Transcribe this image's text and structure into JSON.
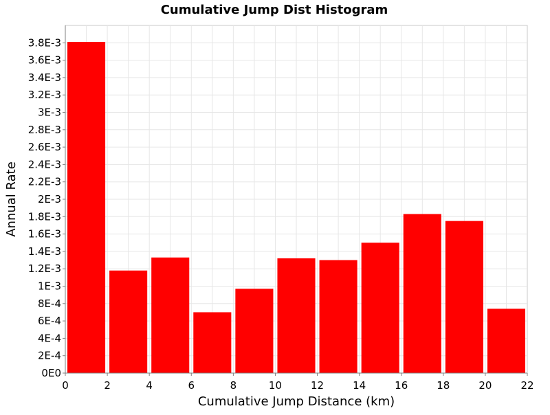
{
  "chart_data": {
    "type": "bar",
    "title": "Cumulative Jump Dist Histogram",
    "xlabel": "Cumulative Jump Distance (km)",
    "ylabel": "Annual Rate",
    "xlim": [
      0,
      22
    ],
    "ylim": [
      0,
      0.004
    ],
    "grid": true,
    "legend": "none",
    "bar_color": "#ff0000",
    "x_ticks": [
      {
        "value": 0,
        "label": "0"
      },
      {
        "value": 2,
        "label": "2"
      },
      {
        "value": 4,
        "label": "4"
      },
      {
        "value": 6,
        "label": "6"
      },
      {
        "value": 8,
        "label": "8"
      },
      {
        "value": 10,
        "label": "10"
      },
      {
        "value": 12,
        "label": "12"
      },
      {
        "value": 14,
        "label": "14"
      },
      {
        "value": 16,
        "label": "16"
      },
      {
        "value": 18,
        "label": "18"
      },
      {
        "value": 20,
        "label": "20"
      },
      {
        "value": 22,
        "label": "22"
      }
    ],
    "y_ticks": [
      {
        "value": 0,
        "label": "0E0"
      },
      {
        "value": 0.0002,
        "label": "2E-4"
      },
      {
        "value": 0.0004,
        "label": "4E-4"
      },
      {
        "value": 0.0006,
        "label": "6E-4"
      },
      {
        "value": 0.0008,
        "label": "8E-4"
      },
      {
        "value": 0.001,
        "label": "1E-3"
      },
      {
        "value": 0.0012,
        "label": "1.2E-3"
      },
      {
        "value": 0.0014,
        "label": "1.4E-3"
      },
      {
        "value": 0.0016,
        "label": "1.6E-3"
      },
      {
        "value": 0.0018,
        "label": "1.8E-3"
      },
      {
        "value": 0.002,
        "label": "2E-3"
      },
      {
        "value": 0.0022,
        "label": "2.2E-3"
      },
      {
        "value": 0.0024,
        "label": "2.4E-3"
      },
      {
        "value": 0.0026,
        "label": "2.6E-3"
      },
      {
        "value": 0.0028,
        "label": "2.8E-3"
      },
      {
        "value": 0.003,
        "label": "3E-3"
      },
      {
        "value": 0.0032,
        "label": "3.2E-3"
      },
      {
        "value": 0.0034,
        "label": "3.4E-3"
      },
      {
        "value": 0.0036,
        "label": "3.6E-3"
      },
      {
        "value": 0.0038,
        "label": "3.8E-3"
      }
    ],
    "bins": [
      {
        "x0": 0,
        "x1": 2,
        "value": 0.00381
      },
      {
        "x0": 2,
        "x1": 4,
        "value": 0.00118
      },
      {
        "x0": 4,
        "x1": 6,
        "value": 0.00133
      },
      {
        "x0": 6,
        "x1": 8,
        "value": 0.0007
      },
      {
        "x0": 8,
        "x1": 10,
        "value": 0.00097
      },
      {
        "x0": 10,
        "x1": 12,
        "value": 0.00132
      },
      {
        "x0": 12,
        "x1": 14,
        "value": 0.0013
      },
      {
        "x0": 14,
        "x1": 16,
        "value": 0.0015
      },
      {
        "x0": 16,
        "x1": 18,
        "value": 0.00183
      },
      {
        "x0": 18,
        "x1": 20,
        "value": 0.00175
      },
      {
        "x0": 20,
        "x1": 22,
        "value": 0.00074
      }
    ]
  }
}
